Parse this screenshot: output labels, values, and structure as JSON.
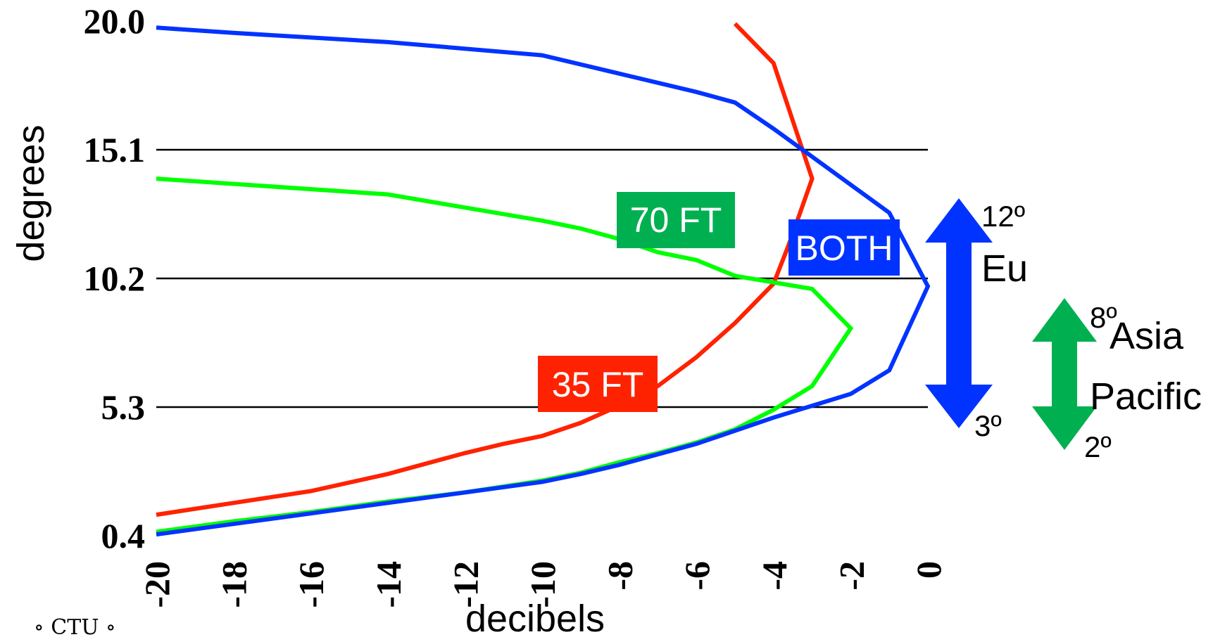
{
  "chart_data": {
    "type": "line",
    "title": "",
    "xlabel": "decibels",
    "ylabel": "degrees",
    "xlim": [
      -20,
      0
    ],
    "ylim": [
      0.4,
      20.0
    ],
    "x_ticks": [
      "-20",
      "-18",
      "-16",
      "-14",
      "-12",
      "-10",
      "-8",
      "-6",
      "-4",
      "-2",
      "0"
    ],
    "y_ticks": [
      "0.4",
      "5.3",
      "10.2",
      "15.1",
      "20.0"
    ],
    "gridlines_y": [
      5.3,
      10.2,
      15.1
    ],
    "series": [
      {
        "name": "35 FT",
        "color": "#ff2200",
        "points": [
          [
            -20,
            1.2
          ],
          [
            -18,
            1.65
          ],
          [
            -16,
            2.1
          ],
          [
            -14,
            2.75
          ],
          [
            -12,
            3.55
          ],
          [
            -11,
            3.9
          ],
          [
            -10,
            4.2
          ],
          [
            -9,
            4.7
          ],
          [
            -8,
            5.35
          ],
          [
            -7,
            6.1
          ],
          [
            -6,
            7.2
          ],
          [
            -5,
            8.5
          ],
          [
            -4,
            10.0
          ],
          [
            -3.6,
            11.5
          ],
          [
            -3,
            14.0
          ],
          [
            -4,
            18.4
          ],
          [
            -5,
            19.9
          ]
        ]
      },
      {
        "name": "70 FT",
        "color": "#00ff00",
        "points": [
          [
            -20,
            0.55
          ],
          [
            -18,
            0.95
          ],
          [
            -16,
            1.3
          ],
          [
            -14,
            1.7
          ],
          [
            -12,
            2.05
          ],
          [
            -10,
            2.5
          ],
          [
            -9,
            2.8
          ],
          [
            -8,
            3.2
          ],
          [
            -7,
            3.55
          ],
          [
            -6,
            3.95
          ],
          [
            -5,
            4.45
          ],
          [
            -4,
            5.2
          ],
          [
            -3,
            6.1
          ],
          [
            -2,
            8.3
          ],
          [
            -3,
            9.8
          ],
          [
            -5,
            10.3
          ],
          [
            -6,
            10.9
          ],
          [
            -7,
            11.2
          ],
          [
            -8,
            11.7
          ],
          [
            -9,
            12.1
          ],
          [
            -10,
            12.4
          ],
          [
            -12,
            12.9
          ],
          [
            -14,
            13.4
          ],
          [
            -20,
            14.0
          ]
        ]
      },
      {
        "name": "BOTH",
        "color": "#0033ff",
        "points": [
          [
            -20,
            0.45
          ],
          [
            -18,
            0.85
          ],
          [
            -16,
            1.25
          ],
          [
            -14,
            1.65
          ],
          [
            -12,
            2.05
          ],
          [
            -10,
            2.45
          ],
          [
            -9,
            2.75
          ],
          [
            -8,
            3.1
          ],
          [
            -7,
            3.5
          ],
          [
            -6,
            3.9
          ],
          [
            -5,
            4.4
          ],
          [
            -4,
            4.9
          ],
          [
            -3,
            5.35
          ],
          [
            -2,
            5.8
          ],
          [
            -1,
            6.7
          ],
          [
            0,
            9.9
          ],
          [
            -1,
            12.7
          ],
          [
            -4,
            15.9
          ],
          [
            -5,
            16.9
          ],
          [
            -6,
            17.3
          ],
          [
            -8,
            18.0
          ],
          [
            -10,
            18.7
          ],
          [
            -14,
            19.2
          ],
          [
            -18,
            19.55
          ],
          [
            -20,
            19.75
          ]
        ]
      }
    ],
    "series_labels": [
      {
        "text": "35 FT",
        "bg": "#ff2200"
      },
      {
        "text": "70 FT",
        "bg": "#00b050"
      },
      {
        "text": "BOTH",
        "bg": "#0033ff"
      }
    ],
    "regions": [
      {
        "name": "Eu",
        "top": "12º",
        "bottom": "3º",
        "color": "#0033ff"
      },
      {
        "name_line1": "Asia",
        "name_line2": "Pacific",
        "top": "8º",
        "bottom": "2º",
        "color": "#00b050"
      }
    ]
  },
  "logo": "∘ CTU ∘"
}
